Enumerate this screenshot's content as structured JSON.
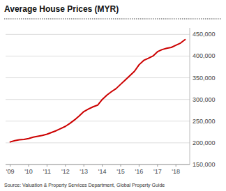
{
  "chart_data": {
    "type": "line",
    "title": "Average House Prices (MYR)",
    "source": "Source: Valuation & Property Services Department, Global Property Guide",
    "color": "#cc0000",
    "grid": true,
    "x": [
      2009.0,
      2009.25,
      2009.5,
      2009.75,
      2010.0,
      2010.25,
      2010.5,
      2010.75,
      2011.0,
      2011.25,
      2011.5,
      2011.75,
      2012.0,
      2012.25,
      2012.5,
      2012.75,
      2013.0,
      2013.25,
      2013.5,
      2013.75,
      2014.0,
      2014.25,
      2014.5,
      2014.75,
      2015.0,
      2015.25,
      2015.5,
      2015.75,
      2016.0,
      2016.25,
      2016.5,
      2016.75,
      2017.0,
      2017.25,
      2017.5,
      2017.75,
      2018.0,
      2018.25,
      2018.5
    ],
    "values": [
      202000,
      205000,
      207000,
      208000,
      210000,
      213000,
      215000,
      217000,
      220000,
      224000,
      228000,
      233000,
      238000,
      245000,
      253000,
      262000,
      272000,
      278000,
      283000,
      287000,
      300000,
      310000,
      318000,
      325000,
      335000,
      345000,
      355000,
      365000,
      380000,
      390000,
      395000,
      400000,
      410000,
      415000,
      418000,
      420000,
      425000,
      430000,
      438000
    ],
    "xlim": [
      2008.75,
      2018.75
    ],
    "xticks": [
      {
        "value": 2009,
        "label": "'09"
      },
      {
        "value": 2010,
        "label": "'10"
      },
      {
        "value": 2011,
        "label": "'11"
      },
      {
        "value": 2012,
        "label": "'12"
      },
      {
        "value": 2013,
        "label": "'13"
      },
      {
        "value": 2014,
        "label": "'14"
      },
      {
        "value": 2015,
        "label": "'15"
      },
      {
        "value": 2016,
        "label": "'16"
      },
      {
        "value": 2017,
        "label": "'17"
      },
      {
        "value": 2018,
        "label": "'18"
      }
    ],
    "ylim": [
      150000,
      465000
    ],
    "yticks": [
      {
        "value": 150000,
        "label": "150,000"
      },
      {
        "value": 200000,
        "label": "200,000"
      },
      {
        "value": 250000,
        "label": "250,000"
      },
      {
        "value": 300000,
        "label": "300,000"
      },
      {
        "value": 350000,
        "label": "350,000"
      },
      {
        "value": 400000,
        "label": "400,000"
      },
      {
        "value": 450000,
        "label": "450,000"
      }
    ]
  }
}
